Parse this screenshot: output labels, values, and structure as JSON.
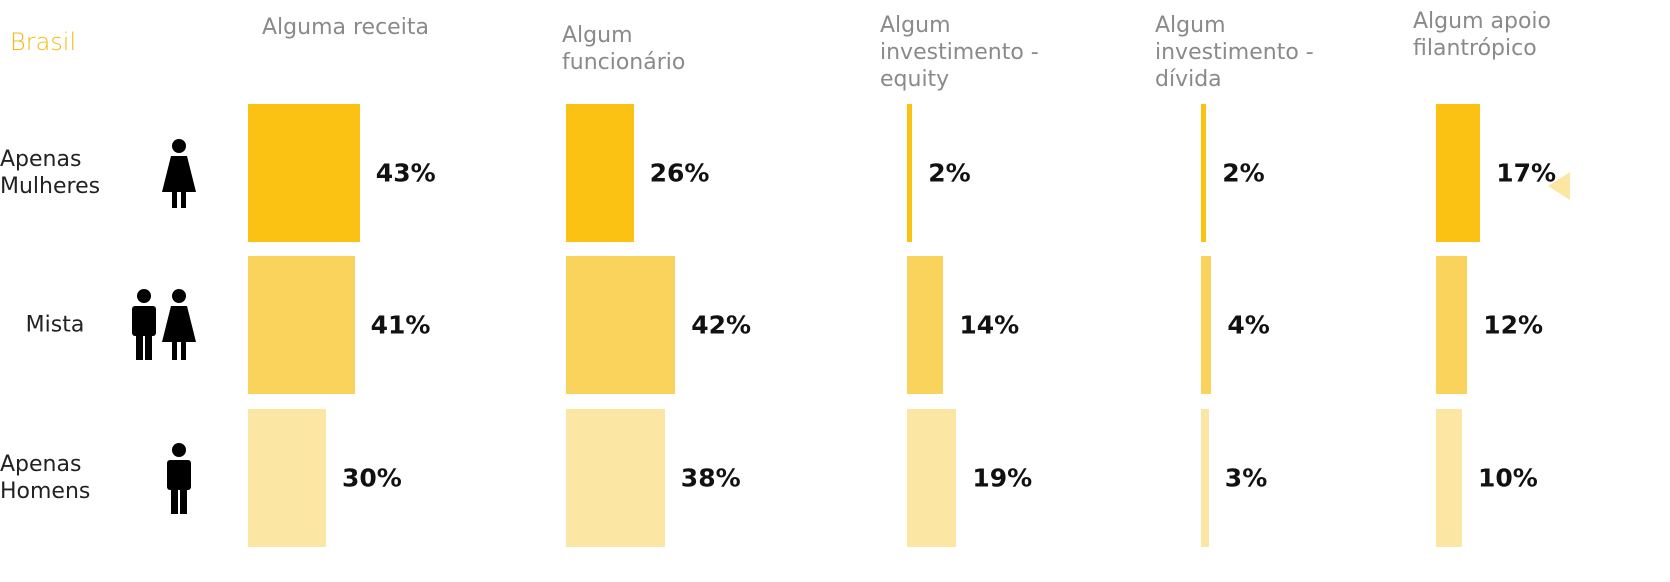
{
  "chart_data": {
    "type": "bar",
    "title": "Brasil",
    "categories": [
      "Apenas Mulheres",
      "Mista",
      "Apenas Homens"
    ],
    "colors": [
      "#fcc213",
      "#f9d35c",
      "#fce6a3"
    ],
    "series": [
      {
        "name": "Alguma receita",
        "values": [
          43,
          41,
          30
        ],
        "value_labels": [
          "43%",
          "41%",
          "30%"
        ]
      },
      {
        "name": "Algum funcionário",
        "values": [
          26,
          42,
          38
        ],
        "value_labels": [
          "26%",
          "42%",
          "38%"
        ]
      },
      {
        "name": "Algum investimento - equity",
        "values": [
          2,
          14,
          19
        ],
        "value_labels": [
          "2%",
          "14%",
          "19%"
        ]
      },
      {
        "name": "Algum investimento - dívida",
        "values": [
          2,
          4,
          3
        ],
        "value_labels": [
          "2%",
          "4%",
          "3%"
        ]
      },
      {
        "name": "Algum apoio filantrópico",
        "values": [
          17,
          12,
          10
        ],
        "value_labels": [
          "17%",
          "12%",
          "10%"
        ]
      }
    ]
  }
}
